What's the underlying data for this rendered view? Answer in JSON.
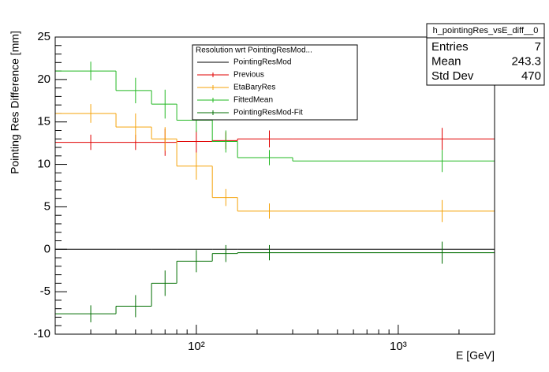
{
  "chart_data": {
    "type": "histogram",
    "xlabel": "E [GeV]",
    "ylabel": "Pointing Res Difference [mm]",
    "xscale": "log",
    "xlim": [
      20,
      3000
    ],
    "ylim": [
      -10,
      25
    ],
    "xticks": [
      {
        "value": 100,
        "label": "10²"
      },
      {
        "value": 1000,
        "label": "10³"
      }
    ],
    "xminorticks": [
      20,
      30,
      40,
      50,
      60,
      70,
      80,
      90,
      200,
      300,
      400,
      500,
      600,
      700,
      800,
      900,
      2000,
      3000
    ],
    "yticks": [
      -10,
      -5,
      0,
      5,
      10,
      15,
      20,
      25
    ],
    "yminorticks": [
      -9,
      -8,
      -7,
      -6,
      -4,
      -3,
      -2,
      -1,
      1,
      2,
      3,
      4,
      6,
      7,
      8,
      9,
      11,
      12,
      13,
      14,
      16,
      17,
      18,
      19,
      21,
      22,
      23,
      24
    ],
    "bins": [
      20,
      40,
      60,
      80,
      120,
      160,
      300,
      3000
    ],
    "legend_title": "Resolution wrt PointingResMod...",
    "series": [
      {
        "name": "PointingResMod",
        "color": "#000000",
        "values": [
          0,
          0,
          0,
          0,
          0,
          0,
          0
        ]
      },
      {
        "name": "Previous",
        "color": "#e00000",
        "values": [
          12.6,
          12.6,
          12.6,
          12.7,
          12.8,
          13,
          13
        ],
        "errors": [
          0.9,
          0.9,
          1.6,
          1.3,
          1.0,
          1.0,
          1.3
        ]
      },
      {
        "name": "EtaBaryRes",
        "color": "#f5a30a",
        "values": [
          16,
          14.4,
          13,
          9.8,
          6.1,
          4.5,
          4.5
        ],
        "errors": [
          1.1,
          1.6,
          1.4,
          1.6,
          1.0,
          0.9,
          1.3
        ]
      },
      {
        "name": "FittedMean",
        "color": "#22b822",
        "values": [
          21,
          18.7,
          17.1,
          15.2,
          12.7,
          10.8,
          10.4
        ],
        "errors": [
          1.1,
          1.5,
          1.7,
          1.4,
          1.3,
          0.9,
          1.3
        ]
      },
      {
        "name": "PointingResMod-Fit",
        "color": "#006e00",
        "values": [
          -7.6,
          -6.7,
          -4,
          -1.4,
          -0.5,
          -0.4,
          -0.4
        ],
        "errors": [
          1.0,
          1.3,
          1.5,
          1.3,
          1.0,
          0.9,
          1.3
        ]
      }
    ],
    "stats": {
      "title": "h_pointingRes_vsE_diff__0",
      "rows": [
        [
          "Entries",
          "7"
        ],
        [
          "Mean",
          "243.3"
        ],
        [
          "Std Dev",
          "470"
        ]
      ]
    }
  }
}
